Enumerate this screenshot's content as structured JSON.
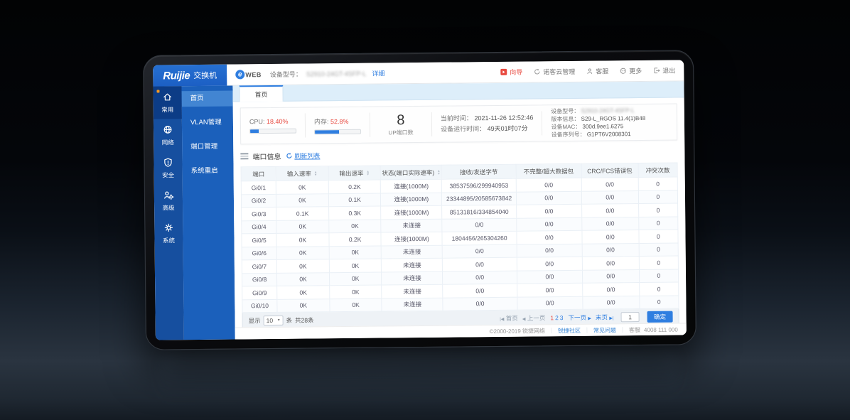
{
  "window": {
    "brand": "Ruijie",
    "brand_suffix": "交换机",
    "product_e": "e",
    "product": "WEB",
    "device_model_label": "设备型号：",
    "device_model_masked": "S2910-24GT-4SFP-L",
    "detail_link": "详细",
    "actions": [
      {
        "label": "向导",
        "icon": "wizard-icon",
        "red": true
      },
      {
        "label": "诺客云管理",
        "icon": "cloud-manage-icon",
        "red": false
      },
      {
        "label": "客服",
        "icon": "support-icon",
        "red": false
      },
      {
        "label": "更多",
        "icon": "more-icon",
        "red": false
      },
      {
        "label": "退出",
        "icon": "logout-icon",
        "red": false
      }
    ]
  },
  "sidebar": {
    "items": [
      {
        "label": "常用",
        "icon": "home-icon",
        "active": true
      },
      {
        "label": "网络",
        "icon": "network-icon",
        "active": false
      },
      {
        "label": "安全",
        "icon": "security-icon",
        "active": false
      },
      {
        "label": "高级",
        "icon": "advanced-icon",
        "active": false
      },
      {
        "label": "系统",
        "icon": "system-icon",
        "active": false
      }
    ],
    "submenu": [
      "首页",
      "VLAN管理",
      "端口管理",
      "系统重启"
    ]
  },
  "tabs": [
    {
      "label": "首页",
      "active": true
    }
  ],
  "dashboard": {
    "cpu_label": "CPU:",
    "cpu_value": "18.40%",
    "cpu_percent": 18.4,
    "mem_label": "内存:",
    "mem_value": "52.8%",
    "mem_percent": 52.8,
    "up_ports_value": "8",
    "up_ports_label": "UP端口数",
    "current_time_label": "当前时间：",
    "current_time": "2021-11-26 12:52:46",
    "uptime_label": "设备运行时间：",
    "uptime": "49天01时07分",
    "device_model_label": "设备型号：",
    "device_model_masked": "S2910-24GT-4SFP-L",
    "version_label": "版本信息：",
    "version": "S29-L_RGOS 11.4(1)B48",
    "mac_label": "设备MAC：",
    "mac": "300d.9ee1.6275",
    "serial_label": "设备序列号：",
    "serial": "G1PT6V2008301"
  },
  "port_table": {
    "title": "端口信息",
    "refresh_label": "刷新列表",
    "columns": [
      "端口",
      "输入速率",
      "输出速率",
      "状态(端口实际速率)",
      "接收/发送字节",
      "不完整/超大数据包",
      "CRC/FCS错误包",
      "冲突次数"
    ],
    "sortable_columns": [
      1,
      2,
      3
    ],
    "rows": [
      [
        "Gi0/1",
        "0K",
        "0.2K",
        "连接(1000M)",
        "38537596/299940953",
        "0/0",
        "0/0",
        "0"
      ],
      [
        "Gi0/2",
        "0K",
        "0.1K",
        "连接(1000M)",
        "23344895/20585673842",
        "0/0",
        "0/0",
        "0"
      ],
      [
        "Gi0/3",
        "0.1K",
        "0.3K",
        "连接(1000M)",
        "85131816/334854040",
        "0/0",
        "0/0",
        "0"
      ],
      [
        "Gi0/4",
        "0K",
        "0K",
        "未连接",
        "0/0",
        "0/0",
        "0/0",
        "0"
      ],
      [
        "Gi0/5",
        "0K",
        "0.2K",
        "连接(1000M)",
        "1804456/265304260",
        "0/0",
        "0/0",
        "0"
      ],
      [
        "Gi0/6",
        "0K",
        "0K",
        "未连接",
        "0/0",
        "0/0",
        "0/0",
        "0"
      ],
      [
        "Gi0/7",
        "0K",
        "0K",
        "未连接",
        "0/0",
        "0/0",
        "0/0",
        "0"
      ],
      [
        "Gi0/8",
        "0K",
        "0K",
        "未连接",
        "0/0",
        "0/0",
        "0/0",
        "0"
      ],
      [
        "Gi0/9",
        "0K",
        "0K",
        "未连接",
        "0/0",
        "0/0",
        "0/0",
        "0"
      ],
      [
        "Gi0/10",
        "0K",
        "0K",
        "未连接",
        "0/0",
        "0/0",
        "0/0",
        "0"
      ]
    ]
  },
  "pagination": {
    "show_label": "显示",
    "page_size": "10",
    "unit_label": "条",
    "total_label": "共28条",
    "first_label": "首页",
    "prev_label": "上一页",
    "pages": [
      "1",
      "2",
      "3"
    ],
    "current_page": "1",
    "next_label": "下一页",
    "last_label": "末页",
    "goto_value": "1",
    "confirm_label": "确定"
  },
  "footer": {
    "copyright": "©2000-2019 锐捷网络",
    "links": [
      "锐捷社区",
      "常见问题"
    ],
    "service_label": "客服",
    "service_phone": "4008 111 000"
  },
  "colors": {
    "accent_blue": "#2f7ee0",
    "accent_red": "#e8493f",
    "nav_blue": "#164f9f",
    "submenu_blue": "#1b60bb"
  }
}
